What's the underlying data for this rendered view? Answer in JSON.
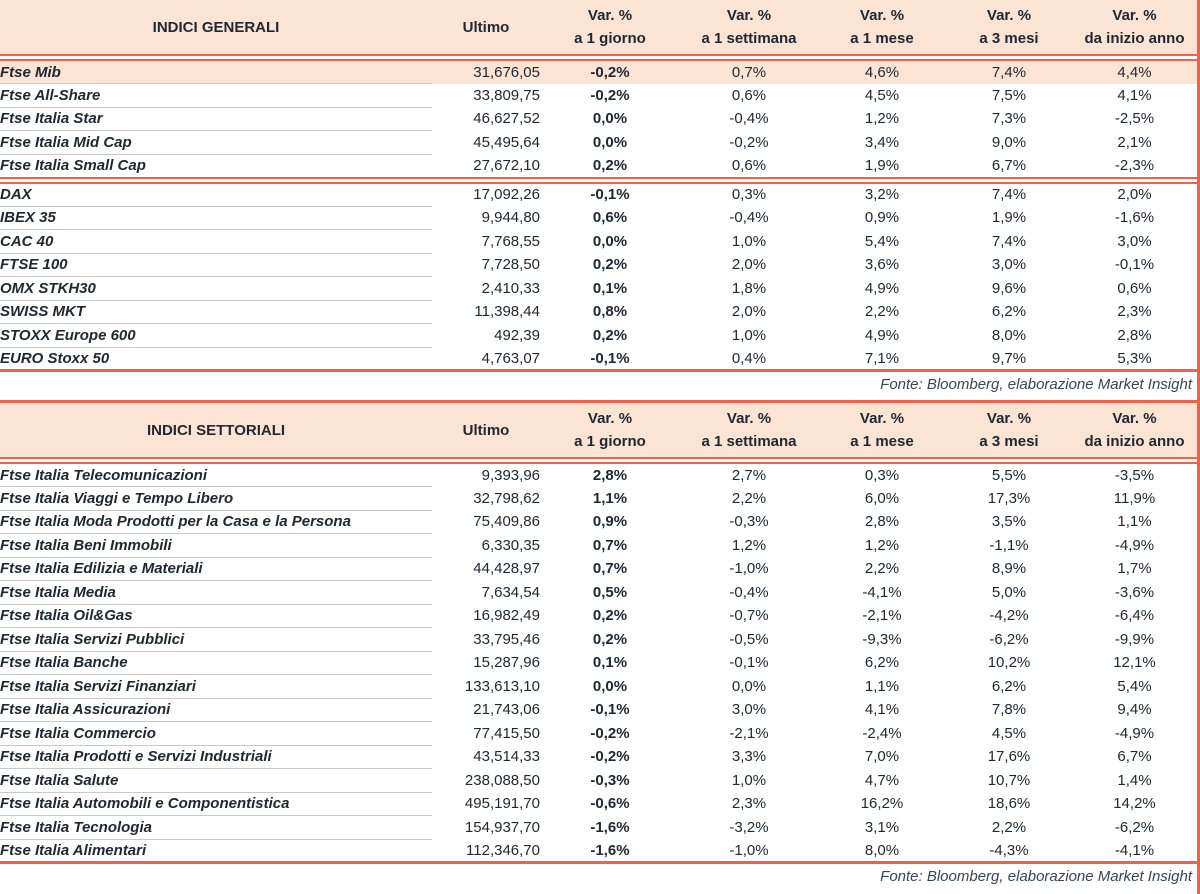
{
  "colors": {
    "accent": "#F0604A",
    "panel_bg": "#FBE4D3",
    "text": "#202834",
    "source_text": "#39435A",
    "row_line": "#C9C9C9",
    "page_bg": "#FFFFFF"
  },
  "columns": {
    "var_pct": "Var. %",
    "ultimo": "Ultimo",
    "day": "a 1 giorno",
    "week": "a 1 settimana",
    "month": "a 1 mese",
    "three_months": "a 3 mesi",
    "ytd": "da inizio anno"
  },
  "source_note": "Fonte: Bloomberg, elaborazione Market Insight",
  "tables": [
    {
      "title": "INDICI GENERALI",
      "groups": [
        [
          {
            "name": "Ftse Mib",
            "last": "31,676,05",
            "d1": "-0,2%",
            "w1": "0,7%",
            "m1": "4,6%",
            "m3": "7,4%",
            "ytd": "4,4%",
            "highlight": true
          },
          {
            "name": "Ftse All-Share",
            "last": "33,809,75",
            "d1": "-0,2%",
            "w1": "0,6%",
            "m1": "4,5%",
            "m3": "7,5%",
            "ytd": "4,1%"
          },
          {
            "name": "Ftse Italia Star",
            "last": "46,627,52",
            "d1": "0,0%",
            "w1": "-0,4%",
            "m1": "1,2%",
            "m3": "7,3%",
            "ytd": "-2,5%"
          },
          {
            "name": "Ftse Italia Mid Cap",
            "last": "45,495,64",
            "d1": "0,0%",
            "w1": "-0,2%",
            "m1": "3,4%",
            "m3": "9,0%",
            "ytd": "2,1%"
          },
          {
            "name": "Ftse Italia Small Cap",
            "last": "27,672,10",
            "d1": "0,2%",
            "w1": "0,6%",
            "m1": "1,9%",
            "m3": "6,7%",
            "ytd": "-2,3%"
          }
        ],
        [
          {
            "name": "DAX",
            "last": "17,092,26",
            "d1": "-0,1%",
            "w1": "0,3%",
            "m1": "3,2%",
            "m3": "7,4%",
            "ytd": "2,0%"
          },
          {
            "name": "IBEX 35",
            "last": "9,944,80",
            "d1": "0,6%",
            "w1": "-0,4%",
            "m1": "0,9%",
            "m3": "1,9%",
            "ytd": "-1,6%"
          },
          {
            "name": "CAC 40",
            "last": "7,768,55",
            "d1": "0,0%",
            "w1": "1,0%",
            "m1": "5,4%",
            "m3": "7,4%",
            "ytd": "3,0%"
          },
          {
            "name": "FTSE 100",
            "last": "7,728,50",
            "d1": "0,2%",
            "w1": "2,0%",
            "m1": "3,6%",
            "m3": "3,0%",
            "ytd": "-0,1%"
          },
          {
            "name": "OMX STKH30",
            "last": "2,410,33",
            "d1": "0,1%",
            "w1": "1,8%",
            "m1": "4,9%",
            "m3": "9,6%",
            "ytd": "0,6%"
          },
          {
            "name": "SWISS MKT",
            "last": "11,398,44",
            "d1": "0,8%",
            "w1": "2,0%",
            "m1": "2,2%",
            "m3": "6,2%",
            "ytd": "2,3%"
          },
          {
            "name": "STOXX Europe 600",
            "last": "492,39",
            "d1": "0,2%",
            "w1": "1,0%",
            "m1": "4,9%",
            "m3": "8,0%",
            "ytd": "2,8%"
          },
          {
            "name": "EURO Stoxx 50",
            "last": "4,763,07",
            "d1": "-0,1%",
            "w1": "0,4%",
            "m1": "7,1%",
            "m3": "9,7%",
            "ytd": "5,3%"
          }
        ]
      ]
    },
    {
      "title": "INDICI SETTORIALI",
      "groups": [
        [
          {
            "name": "Ftse Italia Telecomunicazioni",
            "last": "9,393,96",
            "d1": "2,8%",
            "w1": "2,7%",
            "m1": "0,3%",
            "m3": "5,5%",
            "ytd": "-3,5%"
          },
          {
            "name": "Ftse Italia Viaggi e Tempo Libero",
            "last": "32,798,62",
            "d1": "1,1%",
            "w1": "2,2%",
            "m1": "6,0%",
            "m3": "17,3%",
            "ytd": "11,9%"
          },
          {
            "name": "Ftse Italia Moda Prodotti per la Casa e la Persona",
            "last": "75,409,86",
            "d1": "0,9%",
            "w1": "-0,3%",
            "m1": "2,8%",
            "m3": "3,5%",
            "ytd": "1,1%"
          },
          {
            "name": "Ftse Italia Beni Immobili",
            "last": "6,330,35",
            "d1": "0,7%",
            "w1": "1,2%",
            "m1": "1,2%",
            "m3": "-1,1%",
            "ytd": "-4,9%"
          },
          {
            "name": "Ftse Italia Edilizia e Materiali",
            "last": "44,428,97",
            "d1": "0,7%",
            "w1": "-1,0%",
            "m1": "2,2%",
            "m3": "8,9%",
            "ytd": "1,7%"
          },
          {
            "name": "Ftse Italia Media",
            "last": "7,634,54",
            "d1": "0,5%",
            "w1": "-0,4%",
            "m1": "-4,1%",
            "m3": "5,0%",
            "ytd": "-3,6%"
          },
          {
            "name": "Ftse Italia Oil&Gas",
            "last": "16,982,49",
            "d1": "0,2%",
            "w1": "-0,7%",
            "m1": "-2,1%",
            "m3": "-4,2%",
            "ytd": "-6,4%"
          },
          {
            "name": "Ftse Italia Servizi Pubblici",
            "last": "33,795,46",
            "d1": "0,2%",
            "w1": "-0,5%",
            "m1": "-9,3%",
            "m3": "-6,2%",
            "ytd": "-9,9%"
          },
          {
            "name": "Ftse Italia Banche",
            "last": "15,287,96",
            "d1": "0,1%",
            "w1": "-0,1%",
            "m1": "6,2%",
            "m3": "10,2%",
            "ytd": "12,1%"
          },
          {
            "name": "Ftse Italia Servizi Finanziari",
            "last": "133,613,10",
            "d1": "0,0%",
            "w1": "0,0%",
            "m1": "1,1%",
            "m3": "6,2%",
            "ytd": "5,4%"
          },
          {
            "name": "Ftse Italia Assicurazioni",
            "last": "21,743,06",
            "d1": "-0,1%",
            "w1": "3,0%",
            "m1": "4,1%",
            "m3": "7,8%",
            "ytd": "9,4%"
          },
          {
            "name": "Ftse Italia Commercio",
            "last": "77,415,50",
            "d1": "-0,2%",
            "w1": "-2,1%",
            "m1": "-2,4%",
            "m3": "4,5%",
            "ytd": "-4,9%"
          },
          {
            "name": "Ftse Italia Prodotti e Servizi Industriali",
            "last": "43,514,33",
            "d1": "-0,2%",
            "w1": "3,3%",
            "m1": "7,0%",
            "m3": "17,6%",
            "ytd": "6,7%"
          },
          {
            "name": "Ftse Italia Salute",
            "last": "238,088,50",
            "d1": "-0,3%",
            "w1": "1,0%",
            "m1": "4,7%",
            "m3": "10,7%",
            "ytd": "1,4%"
          },
          {
            "name": "Ftse Italia Automobili e Componentistica",
            "last": "495,191,70",
            "d1": "-0,6%",
            "w1": "2,3%",
            "m1": "16,2%",
            "m3": "18,6%",
            "ytd": "14,2%"
          },
          {
            "name": "Ftse Italia Tecnologia",
            "last": "154,937,70",
            "d1": "-1,6%",
            "w1": "-3,2%",
            "m1": "3,1%",
            "m3": "2,2%",
            "ytd": "-6,2%"
          },
          {
            "name": "Ftse Italia Alimentari",
            "last": "112,346,70",
            "d1": "-1,6%",
            "w1": "-1,0%",
            "m1": "8,0%",
            "m3": "-4,3%",
            "ytd": "-4,1%"
          }
        ]
      ]
    }
  ]
}
